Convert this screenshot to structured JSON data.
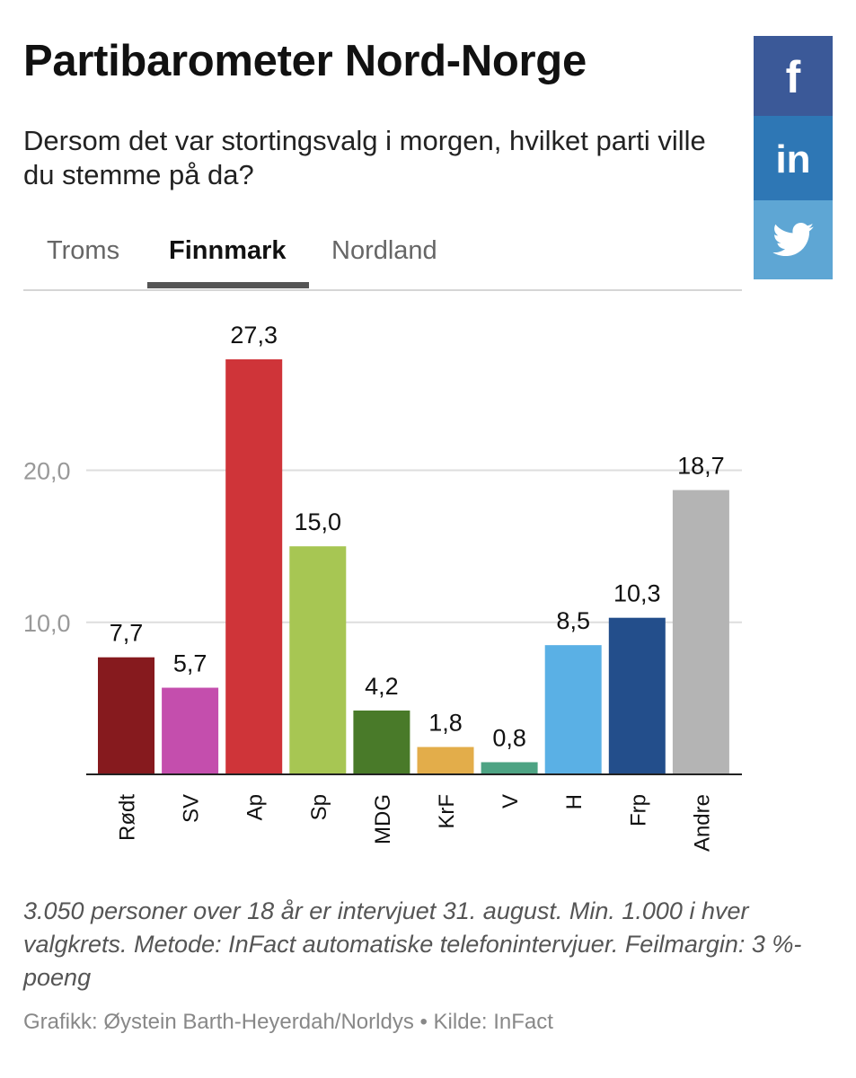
{
  "header": {
    "title": "Partibarometer Nord-Norge",
    "subtitle": "Dersom det var stortingsvalg i morgen, hvilket parti ville du stemme på da?"
  },
  "tabs": [
    {
      "label": "Troms",
      "active": false
    },
    {
      "label": "Finnmark",
      "active": true
    },
    {
      "label": "Nordland",
      "active": false
    }
  ],
  "social": [
    {
      "name": "facebook-icon",
      "color": "#3b5998"
    },
    {
      "name": "linkedin-icon",
      "color": "#2e77b5"
    },
    {
      "name": "twitter-icon",
      "color": "#5ea6d4"
    }
  ],
  "chart_data": {
    "type": "bar",
    "title": "",
    "xlabel": "",
    "ylabel": "",
    "categories": [
      "Rødt",
      "SV",
      "Ap",
      "Sp",
      "MDG",
      "KrF",
      "V",
      "H",
      "Frp",
      "Andre"
    ],
    "values": [
      7.7,
      5.7,
      27.3,
      15.0,
      4.2,
      1.8,
      0.8,
      8.5,
      10.3,
      18.7
    ],
    "value_labels": [
      "7,7",
      "5,7",
      "27,3",
      "15,0",
      "4,2",
      "1,8",
      "0,8",
      "8,5",
      "10,3",
      "18,7"
    ],
    "colors": [
      "#861a1e",
      "#c44ead",
      "#cf3439",
      "#a7c653",
      "#497a29",
      "#e3ad4a",
      "#4da383",
      "#5ab0e5",
      "#234e8b",
      "#b4b4b4"
    ],
    "yticks": [
      10,
      20
    ],
    "ytick_labels": [
      "10,0",
      "20,0"
    ],
    "ylim": [
      0,
      27.3
    ],
    "grid": true,
    "legend": "none"
  },
  "footnote": "3.050 personer over 18 år er intervjuet 31. august. Min. 1.000 i hver valgkrets. Metode: InFact automatiske telefonintervjuer. Feilmargin: 3 %-poeng",
  "credits": "Grafikk: Øystein Barth-Heyerdah/Norldys • Kilde: InFact"
}
